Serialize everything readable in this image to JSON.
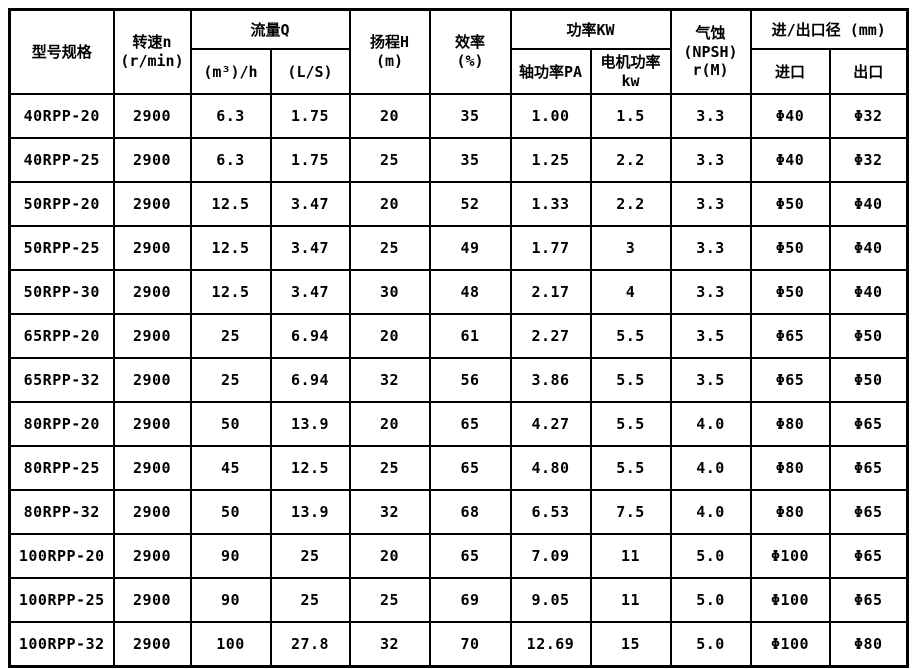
{
  "colors": {
    "border": "#000000",
    "background": "#ffffff",
    "text": "#000000"
  },
  "table": {
    "header": {
      "model": "型号规格",
      "speed": [
        "转速n",
        "(r/min)"
      ],
      "flow_group": "流量Q",
      "flow_m3h": "(m³)/h",
      "flow_ls": "(L/S)",
      "head": [
        "扬程H",
        "(m)"
      ],
      "efficiency": [
        "效率",
        "(%)"
      ],
      "power_group": "功率KW",
      "power_shaft": "轴功率PA",
      "power_motor": [
        "电机功率",
        "kw"
      ],
      "npsh": [
        "气蚀",
        "(NPSH)",
        "r(M)"
      ],
      "inout_group": "进/出口径 (mm)",
      "inlet": "进口",
      "outlet": "出口"
    },
    "column_keys": [
      "model",
      "speed",
      "flow-m3h",
      "flow-ls",
      "head",
      "efficiency",
      "shaft-power",
      "motor-power",
      "npsh",
      "inlet",
      "outlet"
    ],
    "rows": [
      [
        "40RPP-20",
        "2900",
        "6.3",
        "1.75",
        "20",
        "35",
        "1.00",
        "1.5",
        "3.3",
        "Φ40",
        "Φ32"
      ],
      [
        "40RPP-25",
        "2900",
        "6.3",
        "1.75",
        "25",
        "35",
        "1.25",
        "2.2",
        "3.3",
        "Φ40",
        "Φ32"
      ],
      [
        "50RPP-20",
        "2900",
        "12.5",
        "3.47",
        "20",
        "52",
        "1.33",
        "2.2",
        "3.3",
        "Φ50",
        "Φ40"
      ],
      [
        "50RPP-25",
        "2900",
        "12.5",
        "3.47",
        "25",
        "49",
        "1.77",
        "3",
        "3.3",
        "Φ50",
        "Φ40"
      ],
      [
        "50RPP-30",
        "2900",
        "12.5",
        "3.47",
        "30",
        "48",
        "2.17",
        "4",
        "3.3",
        "Φ50",
        "Φ40"
      ],
      [
        "65RPP-20",
        "2900",
        "25",
        "6.94",
        "20",
        "61",
        "2.27",
        "5.5",
        "3.5",
        "Φ65",
        "Φ50"
      ],
      [
        "65RPP-32",
        "2900",
        "25",
        "6.94",
        "32",
        "56",
        "3.86",
        "5.5",
        "3.5",
        "Φ65",
        "Φ50"
      ],
      [
        "80RPP-20",
        "2900",
        "50",
        "13.9",
        "20",
        "65",
        "4.27",
        "5.5",
        "4.0",
        "Φ80",
        "Φ65"
      ],
      [
        "80RPP-25",
        "2900",
        "45",
        "12.5",
        "25",
        "65",
        "4.80",
        "5.5",
        "4.0",
        "Φ80",
        "Φ65"
      ],
      [
        "80RPP-32",
        "2900",
        "50",
        "13.9",
        "32",
        "68",
        "6.53",
        "7.5",
        "4.0",
        "Φ80",
        "Φ65"
      ],
      [
        "100RPP-20",
        "2900",
        "90",
        "25",
        "20",
        "65",
        "7.09",
        "11",
        "5.0",
        "Φ100",
        "Φ65"
      ],
      [
        "100RPP-25",
        "2900",
        "90",
        "25",
        "25",
        "69",
        "9.05",
        "11",
        "5.0",
        "Φ100",
        "Φ65"
      ],
      [
        "100RPP-32",
        "2900",
        "100",
        "27.8",
        "32",
        "70",
        "12.69",
        "15",
        "5.0",
        "Φ100",
        "Φ80"
      ]
    ]
  }
}
